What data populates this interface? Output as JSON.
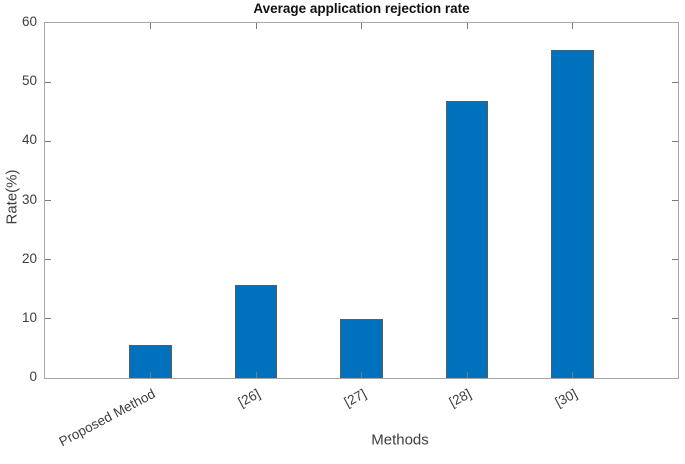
{
  "figure": {
    "title": "Average application rejection rate",
    "xlabel": "Methods",
    "ylabel": "Rate(%)"
  },
  "chart_data": {
    "type": "bar",
    "title": "Average application rejection rate",
    "xlabel": "Methods",
    "ylabel": "Rate(%)",
    "categories": [
      "Proposed Method",
      "[26]",
      "[27]",
      "[28]",
      "[30]"
    ],
    "values": [
      5.5,
      15.8,
      9.9,
      46.9,
      55.4
    ],
    "ylim": [
      0,
      60
    ],
    "yticks": [
      0,
      10,
      20,
      30,
      40,
      50,
      60
    ],
    "xlim_units": [
      0,
      6
    ],
    "bar_width_units": 0.4,
    "grid": false,
    "legend": null,
    "tick_direction": "in",
    "box": true,
    "xtick_label_rotation_deg": 28,
    "colors": {
      "bar_fill": "#0072bd",
      "bar_edge": "#5c5c5c",
      "axis_box": "#a6a6a6",
      "tick": "#7a7a7a",
      "text": "#3d3d3d",
      "title_text": "#111111",
      "background": "#ffffff"
    }
  }
}
